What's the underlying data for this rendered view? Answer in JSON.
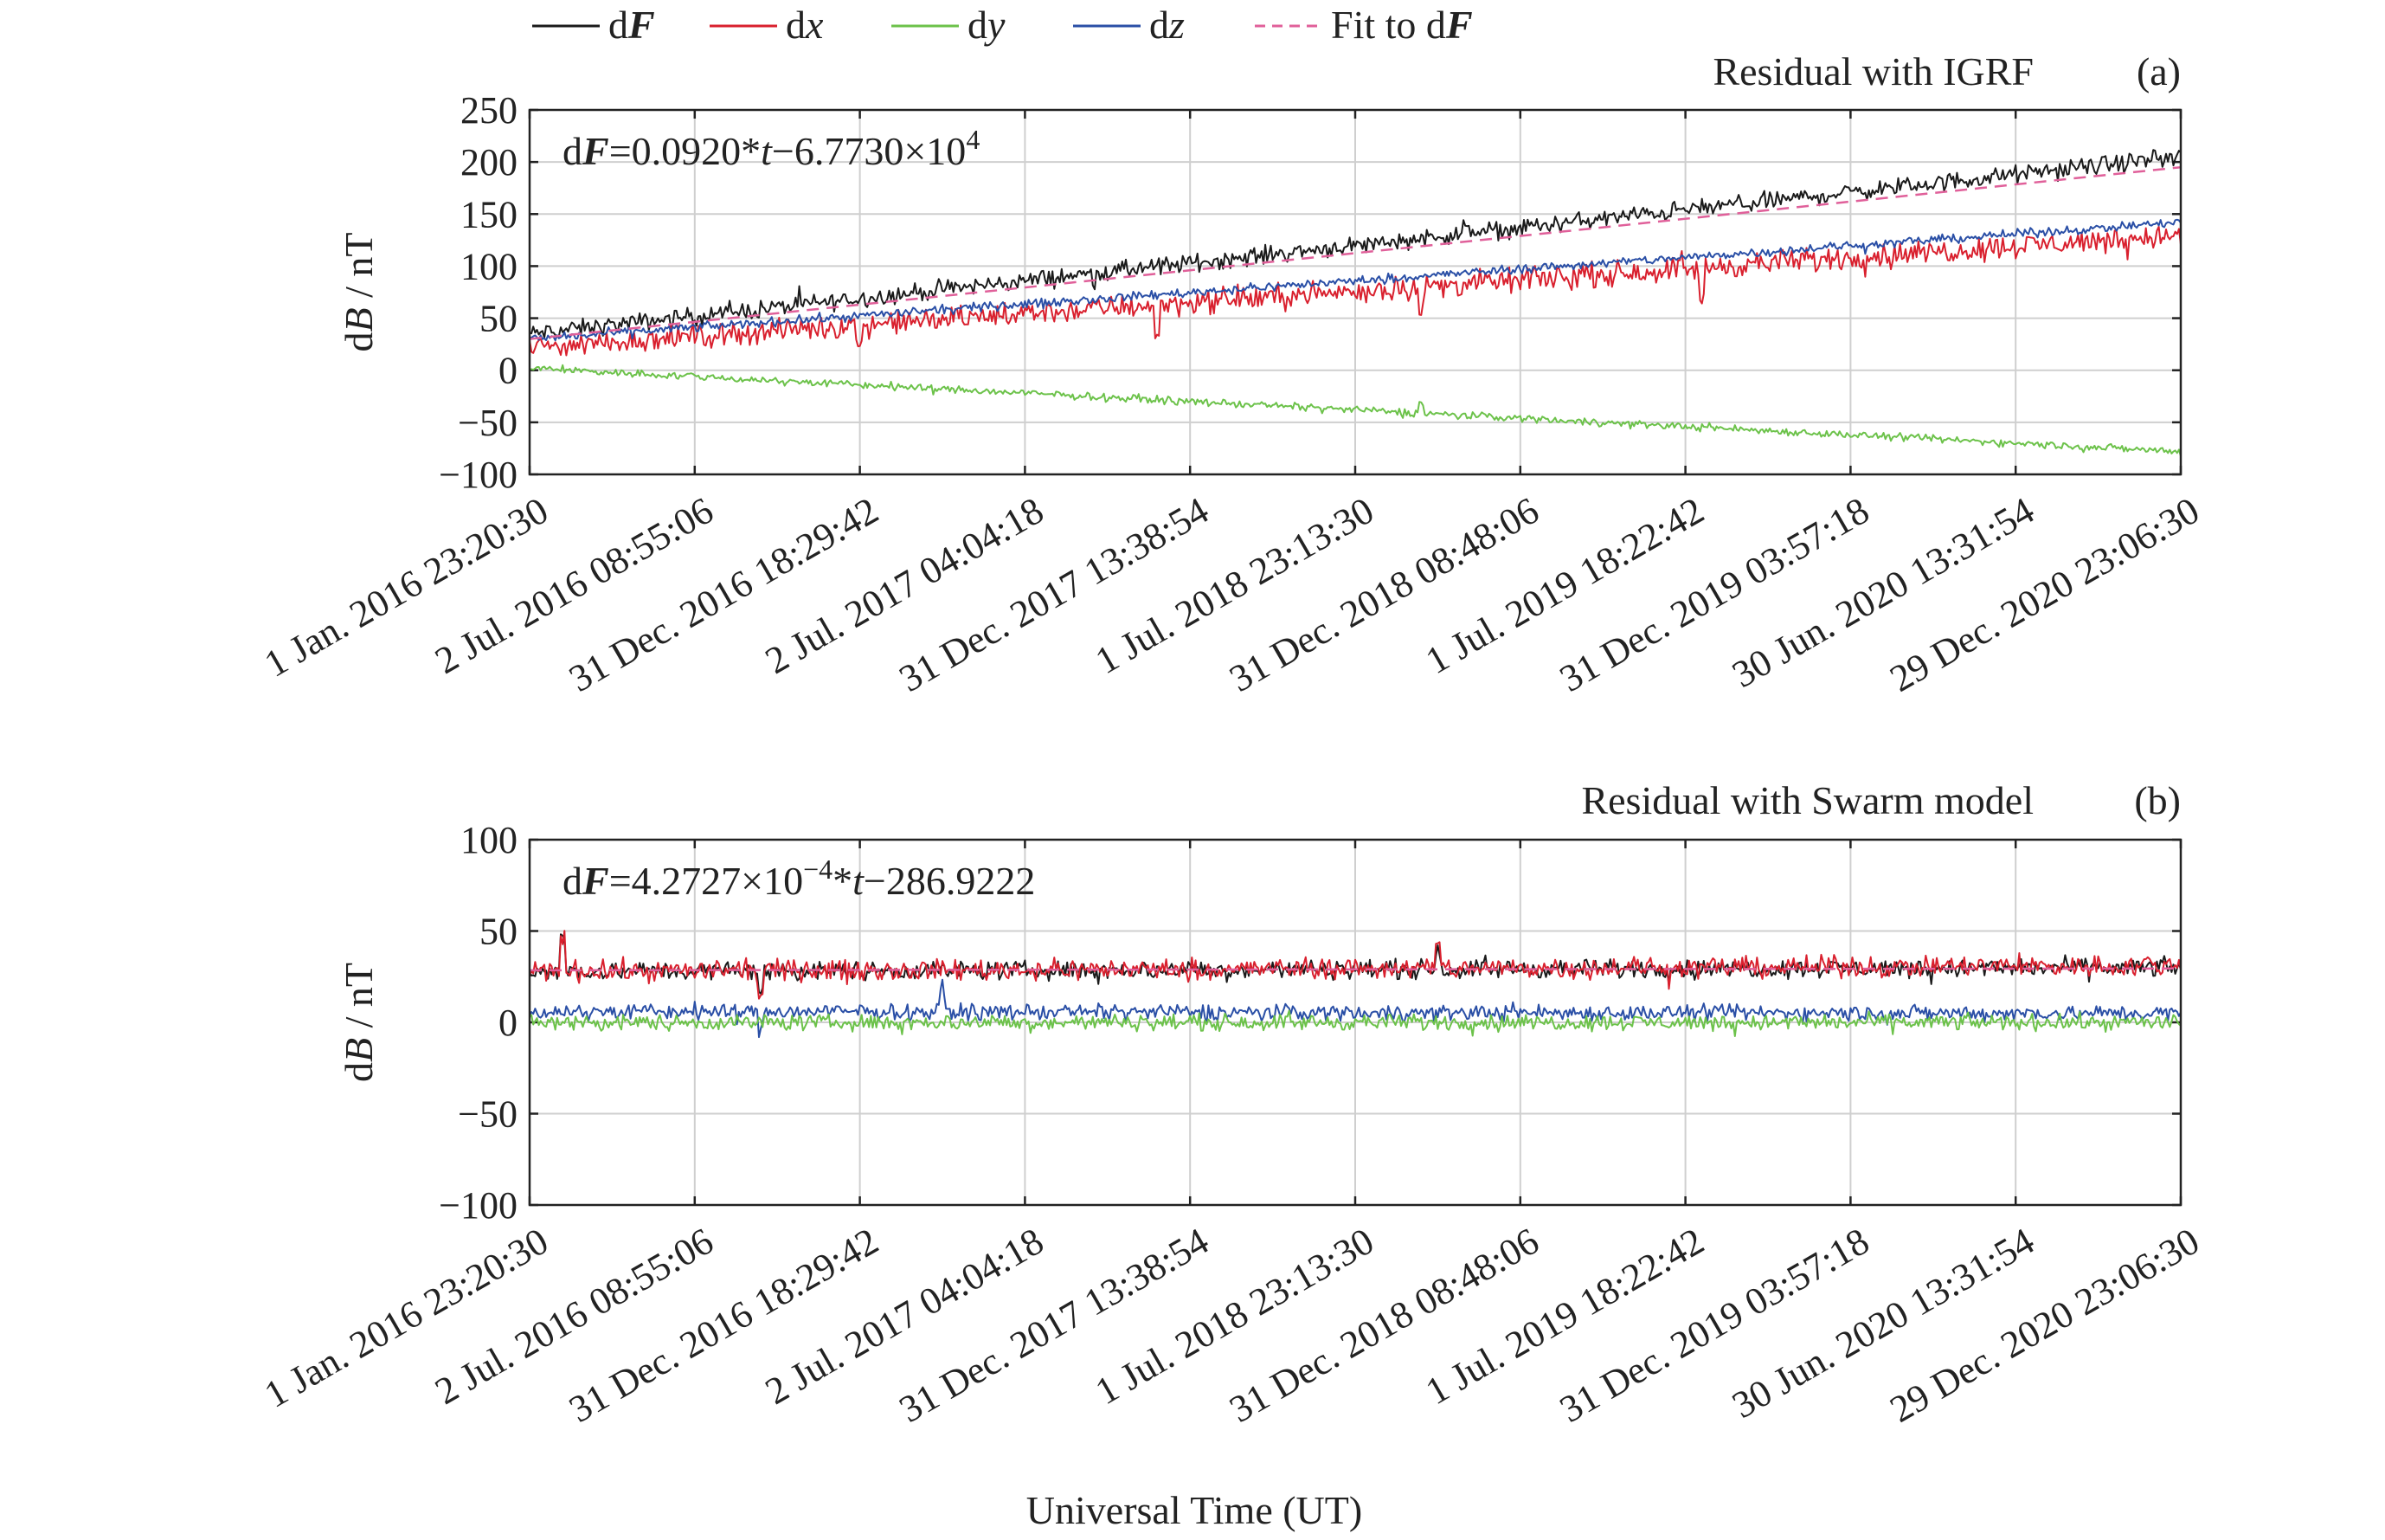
{
  "legend": [
    {
      "label_prefix": "d",
      "label_var": "F",
      "var_style": "bold-italic",
      "color": "#1a1a1a",
      "dash": false
    },
    {
      "label_prefix": "d",
      "label_var": "x",
      "var_style": "italic",
      "color": "#d9202e",
      "dash": false
    },
    {
      "label_prefix": "d",
      "label_var": "y",
      "var_style": "italic",
      "color": "#6cc24a",
      "dash": false
    },
    {
      "label_prefix": "d",
      "label_var": "z",
      "var_style": "italic",
      "color": "#2a4fa6",
      "dash": false
    },
    {
      "label_prefix": "Fit to d",
      "label_var": "F",
      "var_style": "bold-italic",
      "color": "#e0609a",
      "dash": true
    }
  ],
  "xlabel": "Universal Time (UT)",
  "chart_data": [
    {
      "type": "line",
      "panel_tag": "(a)",
      "title": "Residual with IGRF",
      "ylabel_prefix": "d",
      "ylabel_var": "B",
      "ylabel_suffix": " / nT",
      "ylim": [
        -100,
        250
      ],
      "yticks": [
        -100,
        -50,
        0,
        50,
        100,
        150,
        200,
        250
      ],
      "xlim_index": [
        0,
        10
      ],
      "x_tick_labels": [
        "1 Jan. 2016 23:20:30",
        "2 Jul. 2016 08:55:06",
        "31 Dec. 2016 18:29:42",
        "2 Jul. 2017 04:04:18",
        "31 Dec. 2017 13:38:54",
        "1 Jul. 2018 23:13:30",
        "31 Dec. 2018 08:48:06",
        "1 Jul. 2019 18:22:42",
        "31 Dec. 2019 03:57:18",
        "30 Jun. 2020 13:31:54",
        "29 Dec. 2020 23:06:30"
      ],
      "grid": true,
      "formula": {
        "lhs_prefix": "d",
        "lhs_var": "F",
        "rhs_a": "=0.0920*",
        "rhs_t": "t",
        "rhs_b": "−6.7730×10",
        "rhs_exp": "4"
      },
      "series": [
        {
          "name": "dF",
          "color": "#1a1a1a",
          "start": 35,
          "end": 205,
          "noise": 6,
          "spikes": []
        },
        {
          "name": "dx",
          "color": "#d9202e",
          "start": 22,
          "end": 130,
          "noise": 8,
          "spikes": [
            [
              0.38,
              -30
            ],
            [
              0.54,
              -25
            ],
            [
              0.71,
              -35
            ],
            [
              0.2,
              -20
            ]
          ]
        },
        {
          "name": "dz",
          "color": "#2a4fa6",
          "start": 30,
          "end": 142,
          "noise": 3,
          "spikes": []
        },
        {
          "name": "dy",
          "color": "#6cc24a",
          "start": 2,
          "end": -78,
          "noise": 2.5,
          "spikes": [
            [
              0.54,
              10
            ]
          ]
        },
        {
          "name": "Fit to dF",
          "color": "#e0609a",
          "dashed": true,
          "start": 30,
          "end": 195,
          "noise": 0,
          "spikes": []
        }
      ]
    },
    {
      "type": "line",
      "panel_tag": "(b)",
      "title": "Residual with Swarm model",
      "ylabel_prefix": "d",
      "ylabel_var": "B",
      "ylabel_suffix": " / nT",
      "ylim": [
        -100,
        100
      ],
      "yticks": [
        -100,
        -50,
        0,
        50,
        100
      ],
      "xlim_index": [
        0,
        10
      ],
      "x_tick_labels": [
        "1 Jan. 2016 23:20:30",
        "2 Jul. 2016 08:55:06",
        "31 Dec. 2016 18:29:42",
        "2 Jul. 2017 04:04:18",
        "31 Dec. 2017 13:38:54",
        "1 Jul. 2018 23:13:30",
        "31 Dec. 2018 08:48:06",
        "1 Jul. 2019 18:22:42",
        "31 Dec. 2019 03:57:18",
        "30 Jun. 2020 13:31:54",
        "29 Dec. 2020 23:06:30"
      ],
      "grid": true,
      "formula": {
        "lhs_prefix": "d",
        "lhs_var": "F",
        "rhs_a": "=4.2727×10",
        "rhs_exp": "−4",
        "rhs_b": "*",
        "rhs_t": "t",
        "rhs_c": "−286.9222"
      },
      "series": [
        {
          "name": "dF",
          "color": "#1a1a1a",
          "start": 28,
          "end": 30,
          "noise": 3.5,
          "spikes": [
            [
              0.02,
              18
            ],
            [
              0.14,
              -12
            ],
            [
              0.55,
              10
            ]
          ]
        },
        {
          "name": "dx",
          "color": "#d9202e",
          "start": 28,
          "end": 31,
          "noise": 4,
          "spikes": [
            [
              0.02,
              20
            ],
            [
              0.14,
              -14
            ],
            [
              0.55,
              12
            ]
          ]
        },
        {
          "name": "dz",
          "color": "#2a4fa6",
          "start": 6,
          "end": 5,
          "noise": 3,
          "spikes": [
            [
              0.14,
              -10
            ],
            [
              0.25,
              12
            ]
          ]
        },
        {
          "name": "dy",
          "color": "#6cc24a",
          "start": 0,
          "end": 0,
          "noise": 3,
          "spikes": []
        },
        {
          "name": "Fit to dF",
          "color": "#e0609a",
          "dashed": true,
          "start": 28.5,
          "end": 29.5,
          "noise": 0,
          "spikes": []
        }
      ]
    }
  ]
}
